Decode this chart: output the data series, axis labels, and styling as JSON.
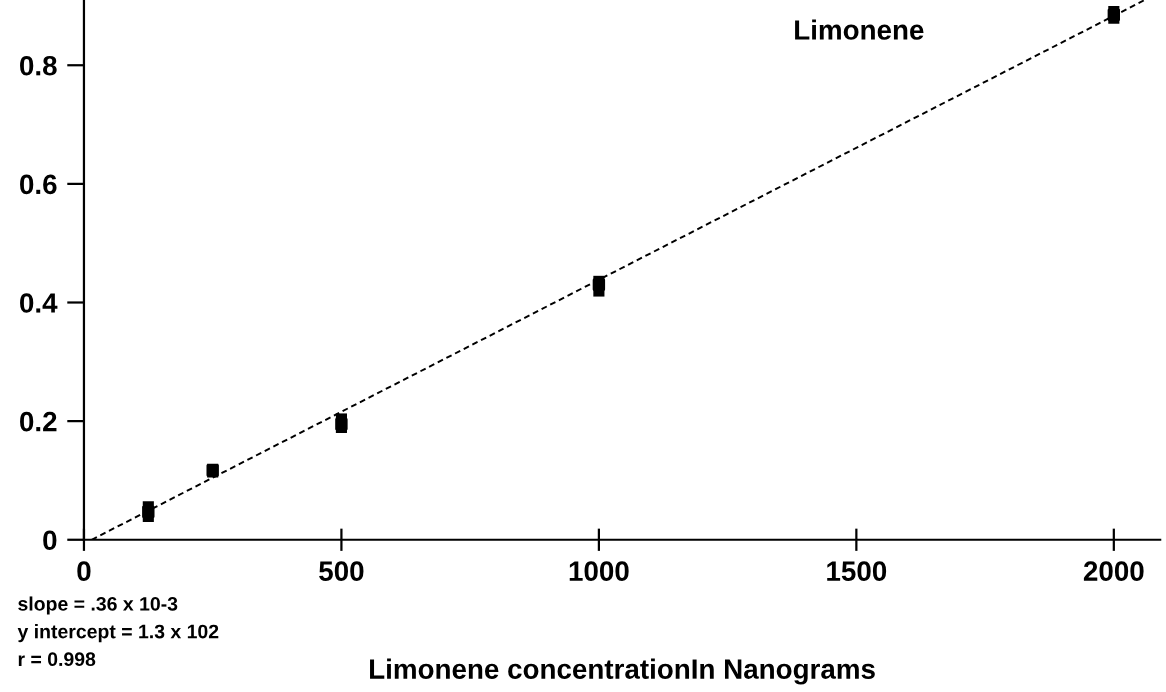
{
  "chart_data": {
    "type": "scatter",
    "title": "Limonene",
    "xlabel": "Limonene concentrationIn Nanograms",
    "annotations": [
      "slope = .36 x 10-3",
      "y intercept = 1.3 x 102",
      "r = 0.998"
    ],
    "xlim": [
      0,
      2090
    ],
    "ylim": [
      0,
      0.91
    ],
    "xticks": [
      0,
      500,
      1000,
      1500,
      2000
    ],
    "yticks": [
      0,
      0.2,
      0.4,
      0.6,
      0.8
    ],
    "grid": false,
    "marker": "none",
    "series": [
      {
        "marker": "square",
        "color": "#000000",
        "x": [
          125,
          250,
          500,
          1000,
          2000
        ],
        "values": [
          0.047,
          0.117,
          0.195,
          0.43,
          0.885
        ],
        "errors": [
          [
            0.03,
            0.065
          ],
          [
            0.105,
            0.128
          ],
          [
            0.18,
            0.213
          ],
          [
            0.41,
            0.445
          ],
          [
            0.87,
            0.9
          ]
        ]
      },
      {
        "type": "line",
        "color": "#000000",
        "line_style": "dashed",
        "x": [
          15,
          2060
        ],
        "values": [
          0,
          0.91
        ]
      }
    ]
  }
}
